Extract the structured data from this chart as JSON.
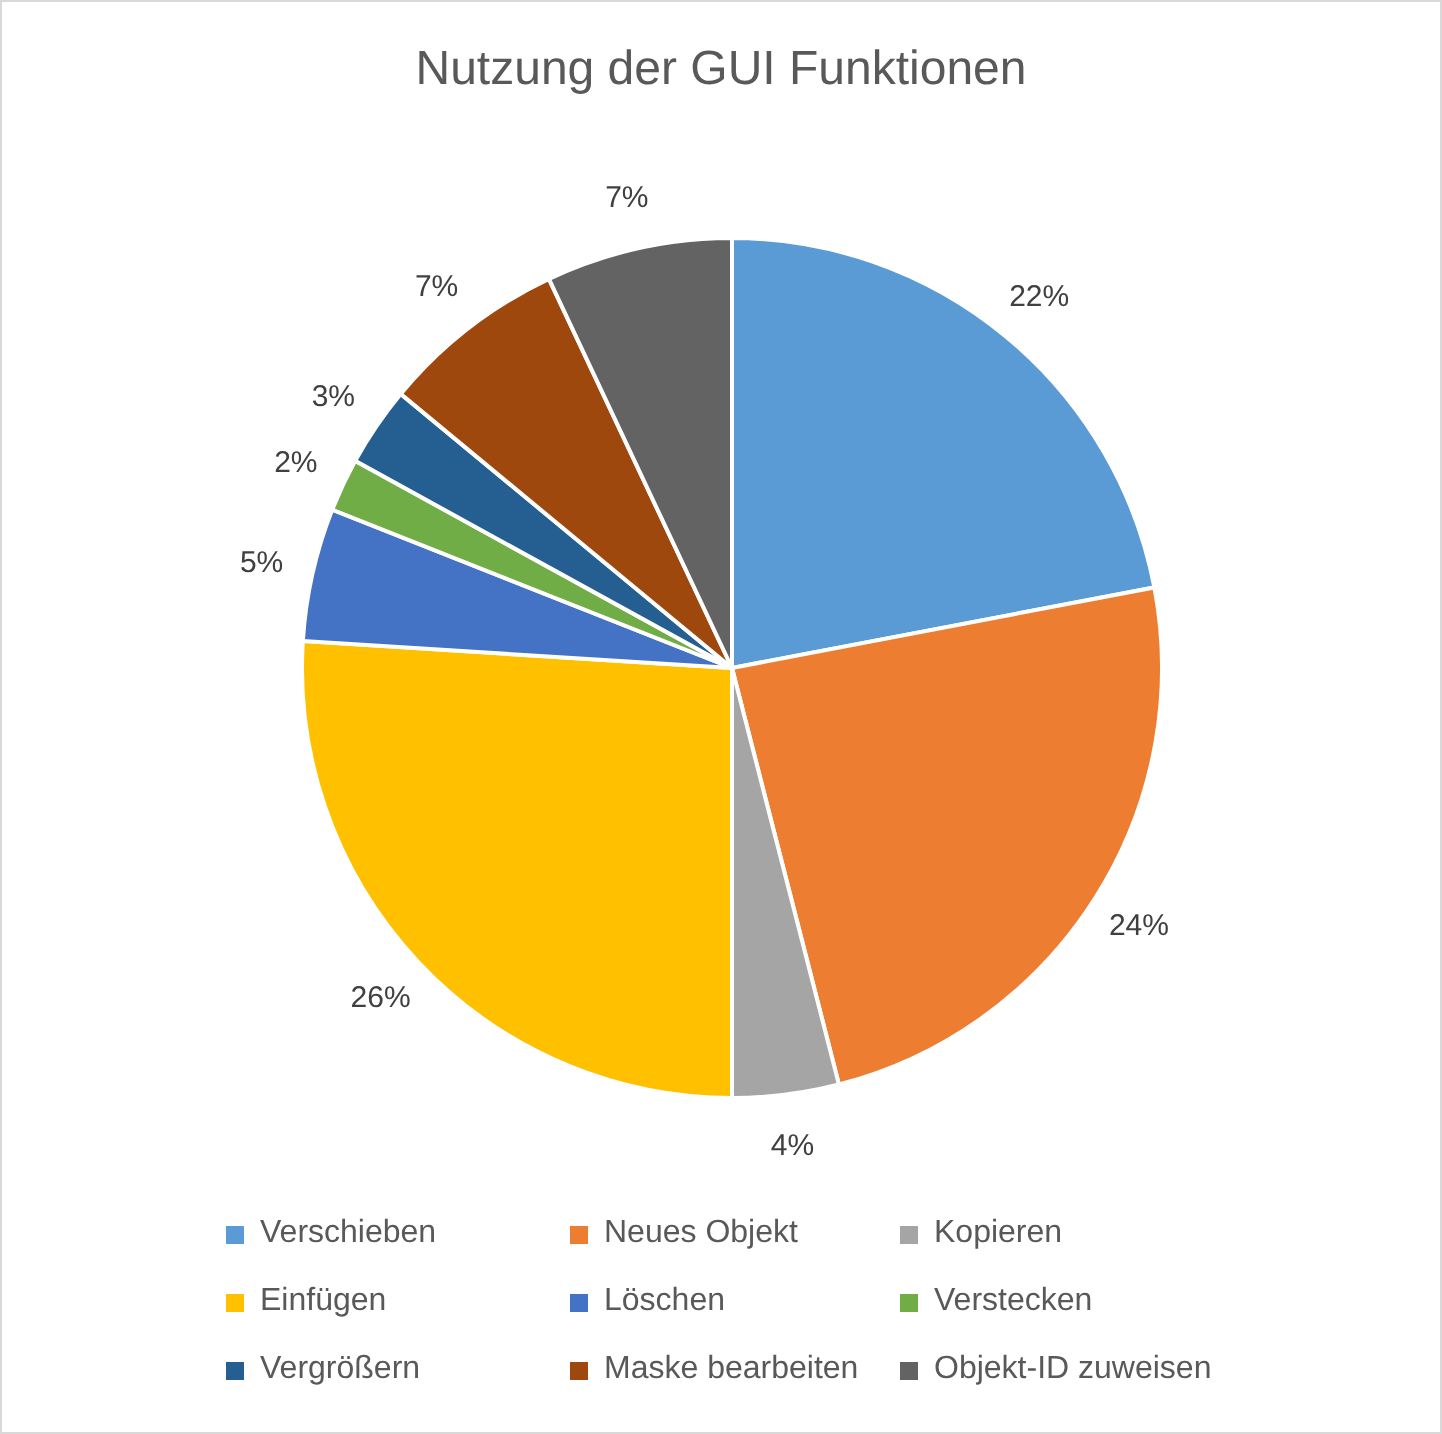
{
  "chart_data": {
    "type": "pie",
    "title": "Nutzung der GUI Funktionen",
    "categories": [
      "Verschieben",
      "Neues Objekt",
      "Kopieren",
      "Einfügen",
      "Löschen",
      "Verstecken",
      "Vergrößern",
      "Maske bearbeiten",
      "Objekt-ID zuweisen"
    ],
    "values": [
      22,
      24,
      4,
      26,
      5,
      2,
      3,
      7,
      7
    ],
    "value_labels": [
      "22%",
      "24%",
      "4%",
      "26%",
      "5%",
      "2%",
      "3%",
      "7%",
      "7%"
    ],
    "colors": [
      "#5b9bd5",
      "#ed7d31",
      "#a5a5a5",
      "#ffc000",
      "#4472c4",
      "#70ad47",
      "#255e91",
      "#9e480e",
      "#636363"
    ],
    "legend": "bottom"
  }
}
